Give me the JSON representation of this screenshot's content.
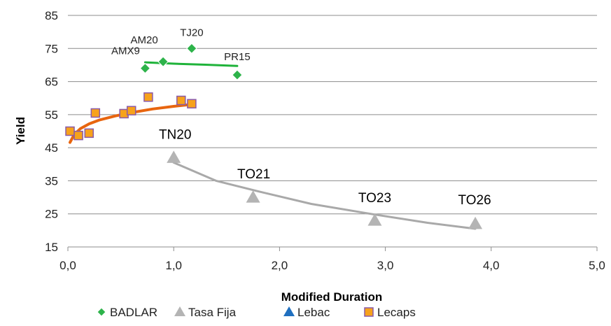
{
  "chart_data": {
    "type": "scatter",
    "xlabel": "Modified Duration",
    "ylabel": "Yield",
    "xlim": [
      0,
      5
    ],
    "ylim": [
      15,
      85
    ],
    "x_ticks": [
      "0,0",
      "1,0",
      "2,0",
      "3,0",
      "4,0",
      "5,0"
    ],
    "y_ticks": [
      "15",
      "25",
      "35",
      "45",
      "55",
      "65",
      "75",
      "85"
    ],
    "grid": "horizontal",
    "legend_position": "bottom",
    "series": [
      {
        "name": "BADLAR",
        "marker": "diamond",
        "color": "#2db34a",
        "trend_color": "#1fb33a",
        "points": [
          {
            "x": 0.73,
            "y": 69.0,
            "label": "AMX9"
          },
          {
            "x": 0.9,
            "y": 71.0,
            "label": "AM20"
          },
          {
            "x": 1.17,
            "y": 75.0,
            "label": "TJ20"
          },
          {
            "x": 1.6,
            "y": 67.0,
            "label": "PR15"
          }
        ],
        "trend": [
          {
            "x": 0.73,
            "y": 70.8
          },
          {
            "x": 1.0,
            "y": 70.4
          },
          {
            "x": 1.3,
            "y": 70.1
          },
          {
            "x": 1.6,
            "y": 69.7
          }
        ]
      },
      {
        "name": "Tasa Fija",
        "marker": "triangle",
        "color": "#b4b4b4",
        "trend_color": "#a9a9a9",
        "points": [
          {
            "x": 1.0,
            "y": 42.0,
            "label": "TN20"
          },
          {
            "x": 1.75,
            "y": 30.0,
            "label": "TO21"
          },
          {
            "x": 2.9,
            "y": 23.0,
            "label": "TO23"
          },
          {
            "x": 3.85,
            "y": 22.0,
            "label": "TO26"
          }
        ],
        "trend": [
          {
            "x": 1.0,
            "y": 40.5
          },
          {
            "x": 1.4,
            "y": 35.0
          },
          {
            "x": 1.8,
            "y": 31.8
          },
          {
            "x": 2.3,
            "y": 28.0
          },
          {
            "x": 2.9,
            "y": 24.8
          },
          {
            "x": 3.4,
            "y": 22.3
          },
          {
            "x": 3.85,
            "y": 20.5
          }
        ]
      },
      {
        "name": "Lebac",
        "marker": "triangle",
        "color": "#1f6fbf",
        "points": []
      },
      {
        "name": "Lecaps",
        "marker": "square",
        "color": "#f7a21b",
        "stroke": "#8a5aa8",
        "trend_color": "#e8650f",
        "points": [
          {
            "x": 0.02,
            "y": 50.0
          },
          {
            "x": 0.1,
            "y": 48.7
          },
          {
            "x": 0.2,
            "y": 49.4
          },
          {
            "x": 0.26,
            "y": 55.5
          },
          {
            "x": 0.53,
            "y": 55.3
          },
          {
            "x": 0.6,
            "y": 56.2
          },
          {
            "x": 0.76,
            "y": 60.3
          },
          {
            "x": 1.07,
            "y": 59.3
          },
          {
            "x": 1.17,
            "y": 58.3
          }
        ],
        "trend": [
          {
            "x": 0.02,
            "y": 46.6
          },
          {
            "x": 0.06,
            "y": 49.0
          },
          {
            "x": 0.12,
            "y": 50.8
          },
          {
            "x": 0.2,
            "y": 52.2
          },
          {
            "x": 0.3,
            "y": 53.4
          },
          {
            "x": 0.45,
            "y": 54.6
          },
          {
            "x": 0.6,
            "y": 55.6
          },
          {
            "x": 0.8,
            "y": 56.7
          },
          {
            "x": 1.0,
            "y": 57.5
          },
          {
            "x": 1.17,
            "y": 58.1
          }
        ]
      }
    ]
  }
}
